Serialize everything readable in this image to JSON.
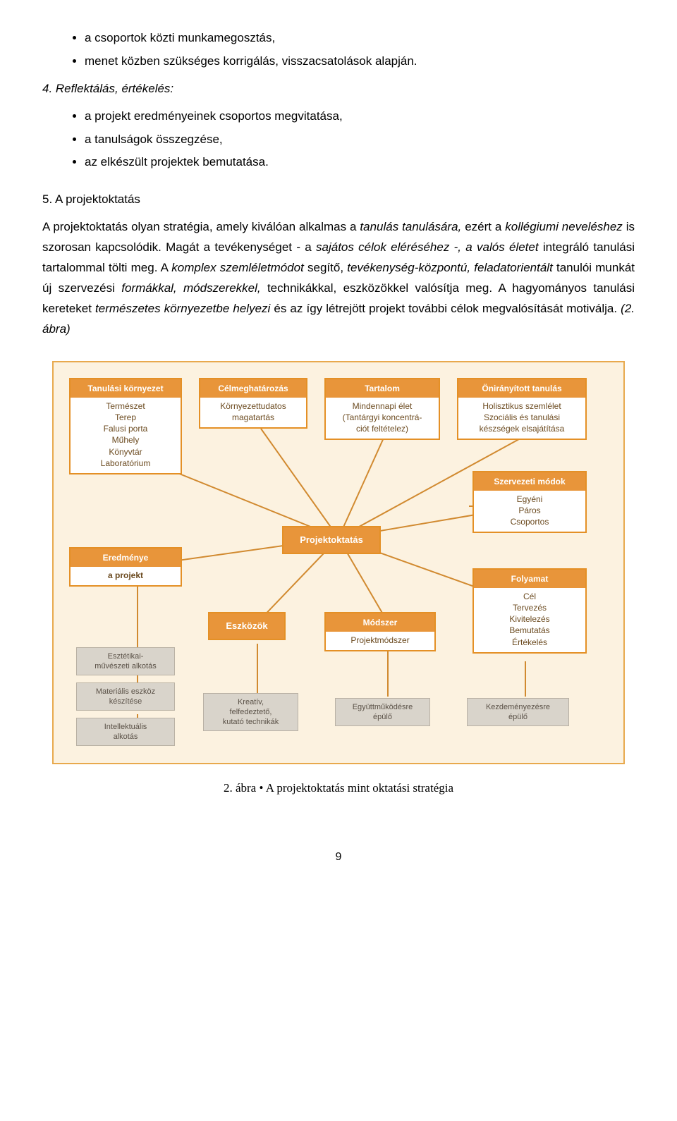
{
  "list1": {
    "items": [
      "a csoportok közti munkamegosztás,",
      "menet közben szükséges korrigálás, visszacsatolások alapján."
    ]
  },
  "section4": {
    "title": "4. Reflektálás, értékelés:",
    "items": [
      "a projekt eredményeinek csoportos megvitatása,",
      "a tanulságok összegzése,",
      "az elkészült projektek bemutatása."
    ]
  },
  "section5": {
    "title": "5. A projektoktatás",
    "para_parts": {
      "p1": "A projektoktatás olyan stratégia, amely kiválóan alkalmas a ",
      "p2": "tanulás tanulására,",
      "p3": " ezért a ",
      "p4": "kollégiumi neveléshez",
      "p5": " is szorosan kapcsolódik.  Magát a tevékenységet - a ",
      "p6": "sajátos célok eléréséhez -, a valós életet",
      "p7": " integráló tanulási tartalommal tölti meg. A ",
      "p8": "komplex szemléletmódot",
      "p9": " segítő, ",
      "p10": "tevékenység-központú, feladatorientált",
      "p11": " tanulói munkát új szervezési ",
      "p12": "formákkal, módszerekkel,",
      "p13": " technikákkal, eszközökkel valósítja meg. A hagyományos tanulási kereteket ",
      "p14": "természetes környezetbe helyezi",
      "p15": " és  az így  létrejött projekt további célok megvalósítását motiválja. ",
      "p16": "(2. ábra)"
    }
  },
  "diagram": {
    "colors": {
      "frame_border": "#e8a94d",
      "frame_bg": "#fcf2e0",
      "box_border": "#e49026",
      "box_header_bg": "#e8953a",
      "box_text": "#6b4a1f",
      "grey_bg": "#d9d4cb",
      "line": "#d18a30"
    },
    "central": "Projektoktatás",
    "top_row": [
      {
        "header": "Tanulási környezet",
        "body": "Természet\nTerep\nFalusi porta\nMűhely\nKönyvtár\nLaboratórium"
      },
      {
        "header": "Célmeghatározás",
        "body": "Környezettudatos\nmagatartás"
      },
      {
        "header": "Tartalom",
        "body": "Mindennapi élet\n(Tantárgyi koncentrá-\nciót feltételez)"
      },
      {
        "header": "Önirányított tanulás",
        "body": "Holisztikus szemlélet\nSzociális és tanulási\nkészségek elsajátítása"
      }
    ],
    "right_mid": [
      {
        "header": "Szervezeti módok",
        "body": "Egyéni\nPáros\nCsoportos"
      },
      {
        "header": "Folyamat",
        "body": "Cél\nTervezés\nKivitelezés\nBemutatás\nÉrtékelés"
      }
    ],
    "left_mid": {
      "header": "Eredménye",
      "body": "a projekt"
    },
    "mid_row": [
      {
        "label": "Eszközök"
      },
      {
        "header": "Módszer",
        "body": "Projektmódszer"
      }
    ],
    "left_grey": [
      "Esztétikai-\nművészeti alkotás",
      "Materiális eszköz\nkészítése",
      "Intellektuális\nalkotás"
    ],
    "bottom_grey": [
      "Kreatív,\nfelfedeztető,\nkutató technikák",
      "Együttműködésre\népülő",
      "Kezdeményezésre\népülő"
    ]
  },
  "caption": "2. ábra • A projektoktatás mint oktatási stratégia",
  "page_number": "9"
}
